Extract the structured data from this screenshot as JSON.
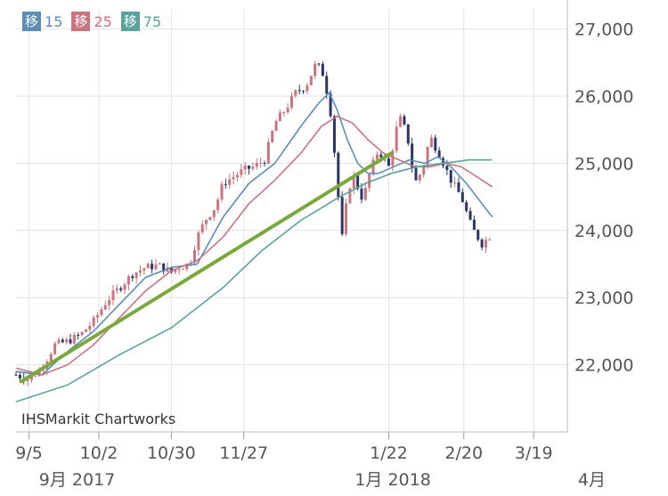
{
  "legend": [
    {
      "mark": "移",
      "value": "15",
      "color": "#5b8db8"
    },
    {
      "mark": "移",
      "value": "25",
      "color": "#c9747f"
    },
    {
      "mark": "移",
      "value": "75",
      "color": "#5aa39a"
    }
  ],
  "watermark": "IHSMarkit Chartworks",
  "colors": {
    "up": "#c9747f",
    "down": "#2b3566",
    "ma15": "#5b8db8",
    "ma25": "#c9747f",
    "ma75": "#5aa39a",
    "trend": "#7aa83a",
    "grid": "#e3e3e3"
  },
  "chart_data": {
    "type": "line",
    "y_ticks": [
      "22,000",
      "23,000",
      "24,000",
      "25,000",
      "26,000",
      "27,000"
    ],
    "y_tick_values": [
      22000,
      23000,
      24000,
      25000,
      26000,
      27000
    ],
    "ylim": [
      21000,
      27300
    ],
    "x_ticks": [
      "9/5",
      "10/2",
      "10/30",
      "11/27",
      "1/22",
      "2/20",
      "3/19"
    ],
    "x_tick_days": [
      5,
      32,
      60,
      88,
      144,
      173,
      200
    ],
    "x_range_days": [
      0,
      213
    ],
    "month_labels": [
      "9月 2017",
      "1月 2018",
      "4月"
    ],
    "month_label_days": [
      2,
      124,
      213
    ],
    "price": [
      [
        0,
        21850
      ],
      [
        5,
        21780
      ],
      [
        10,
        21950
      ],
      [
        15,
        22300
      ],
      [
        20,
        22350
      ],
      [
        25,
        22450
      ],
      [
        30,
        22650
      ],
      [
        35,
        22950
      ],
      [
        40,
        23150
      ],
      [
        45,
        23350
      ],
      [
        50,
        23450
      ],
      [
        55,
        23480
      ],
      [
        60,
        23380
      ],
      [
        63,
        23450
      ],
      [
        67,
        23500
      ],
      [
        70,
        23900
      ],
      [
        73,
        24150
      ],
      [
        77,
        24350
      ],
      [
        80,
        24700
      ],
      [
        84,
        24800
      ],
      [
        88,
        24900
      ],
      [
        92,
        24950
      ],
      [
        96,
        25050
      ],
      [
        100,
        25600
      ],
      [
        104,
        25800
      ],
      [
        108,
        26050
      ],
      [
        112,
        26150
      ],
      [
        116,
        26500
      ],
      [
        119,
        26300
      ],
      [
        122,
        25650
      ],
      [
        124,
        24700
      ],
      [
        126,
        23900
      ],
      [
        128,
        24500
      ],
      [
        130,
        24850
      ],
      [
        134,
        24450
      ],
      [
        137,
        24900
      ],
      [
        140,
        25200
      ],
      [
        144,
        24950
      ],
      [
        148,
        25700
      ],
      [
        151,
        25450
      ],
      [
        154,
        24700
      ],
      [
        157,
        24900
      ],
      [
        160,
        25400
      ],
      [
        164,
        25100
      ],
      [
        168,
        24750
      ],
      [
        172,
        24500
      ],
      [
        176,
        24050
      ],
      [
        180,
        23800
      ],
      [
        184,
        23950
      ]
    ],
    "series": [
      {
        "key": "ma15",
        "values": [
          [
            0,
            21900
          ],
          [
            10,
            21850
          ],
          [
            20,
            22200
          ],
          [
            30,
            22500
          ],
          [
            40,
            22900
          ],
          [
            50,
            23300
          ],
          [
            60,
            23450
          ],
          [
            70,
            23500
          ],
          [
            80,
            24200
          ],
          [
            90,
            24700
          ],
          [
            100,
            25000
          ],
          [
            110,
            25550
          ],
          [
            117,
            25900
          ],
          [
            121,
            26050
          ],
          [
            124,
            25800
          ],
          [
            128,
            25350
          ],
          [
            132,
            25000
          ],
          [
            136,
            24850
          ],
          [
            140,
            24850
          ],
          [
            146,
            24950
          ],
          [
            152,
            25050
          ],
          [
            158,
            25000
          ],
          [
            163,
            25100
          ],
          [
            168,
            24950
          ],
          [
            174,
            24700
          ],
          [
            180,
            24400
          ],
          [
            184,
            24200
          ]
        ]
      },
      {
        "key": "ma25",
        "values": [
          [
            0,
            21950
          ],
          [
            10,
            21850
          ],
          [
            20,
            22000
          ],
          [
            30,
            22300
          ],
          [
            40,
            22700
          ],
          [
            50,
            23100
          ],
          [
            60,
            23400
          ],
          [
            70,
            23550
          ],
          [
            80,
            23900
          ],
          [
            90,
            24400
          ],
          [
            100,
            24750
          ],
          [
            110,
            25150
          ],
          [
            118,
            25550
          ],
          [
            124,
            25700
          ],
          [
            130,
            25600
          ],
          [
            136,
            25350
          ],
          [
            142,
            25150
          ],
          [
            148,
            25050
          ],
          [
            154,
            24950
          ],
          [
            160,
            24950
          ],
          [
            166,
            25000
          ],
          [
            172,
            24950
          ],
          [
            178,
            24800
          ],
          [
            184,
            24650
          ]
        ]
      },
      {
        "key": "ma75",
        "values": [
          [
            0,
            21450
          ],
          [
            20,
            21700
          ],
          [
            40,
            22150
          ],
          [
            60,
            22550
          ],
          [
            80,
            23150
          ],
          [
            95,
            23700
          ],
          [
            110,
            24150
          ],
          [
            125,
            24500
          ],
          [
            135,
            24700
          ],
          [
            145,
            24850
          ],
          [
            155,
            24950
          ],
          [
            165,
            25000
          ],
          [
            175,
            25050
          ],
          [
            184,
            25050
          ]
        ]
      }
    ],
    "trendline": [
      [
        2,
        21750
      ],
      [
        145,
        25150
      ]
    ]
  }
}
